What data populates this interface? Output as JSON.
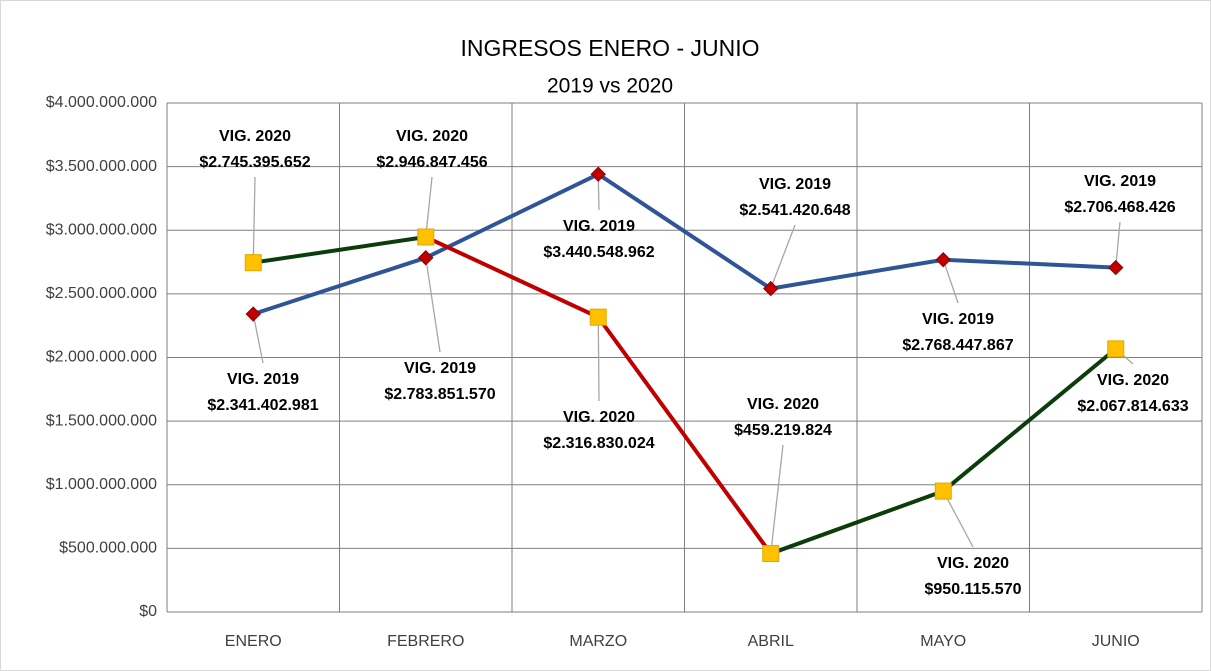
{
  "chart_data": {
    "type": "line",
    "title": "INGRESOS ENERO - JUNIO",
    "subtitle": "2019 vs 2020",
    "categories": [
      "ENERO",
      "FEBRERO",
      "MARZO",
      "ABRIL",
      "MAYO",
      "JUNIO"
    ],
    "series": [
      {
        "name": "VIG. 2019",
        "color": "#2f5597",
        "marker": "diamond",
        "marker_color": "#c00000",
        "values": [
          2341402981,
          2783851570,
          3440548962,
          2541420648,
          2768447867,
          2706468426
        ],
        "value_labels": [
          "$2.341.402.981",
          "$2.783.851.570",
          "$3.440.548.962",
          "$2.541.420.648",
          "$2.768.447.867",
          "$2.706.468.426"
        ]
      },
      {
        "name": "VIG. 2020",
        "color_up": "#0b3d0b",
        "color_down": "#c00000",
        "marker": "square",
        "marker_color": "#ffc000",
        "values": [
          2745395652,
          2946847456,
          2316830024,
          459219824,
          950115570,
          2067814633
        ],
        "value_labels": [
          "$2.745.395.652",
          "$2.946.847.456",
          "$2.316.830.024",
          "$459.219.824",
          "$950.115.570",
          "$2.067.814.633"
        ]
      }
    ],
    "ylim": [
      0,
      4000000000
    ],
    "yticks": [
      {
        "value": 0,
        "label": "$0"
      },
      {
        "value": 500000000,
        "label": "$500.000.000"
      },
      {
        "value": 1000000000,
        "label": "$1.000.000.000"
      },
      {
        "value": 1500000000,
        "label": "$1.500.000.000"
      },
      {
        "value": 2000000000,
        "label": "$2.000.000.000"
      },
      {
        "value": 2500000000,
        "label": "$2.500.000.000"
      },
      {
        "value": 3000000000,
        "label": "$3.000.000.000"
      },
      {
        "value": 3500000000,
        "label": "$3.500.000.000"
      },
      {
        "value": 4000000000,
        "label": "$4.000.000.000"
      }
    ],
    "grid": true
  }
}
